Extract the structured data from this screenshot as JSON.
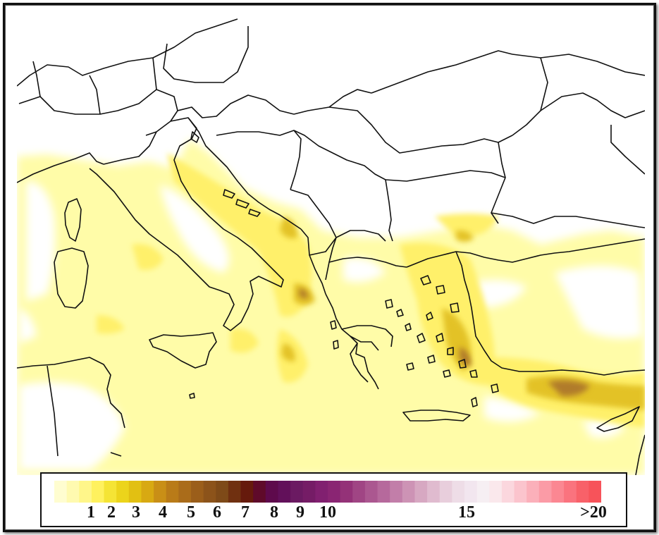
{
  "legend": {
    "colors": [
      "#fffdd0",
      "#fffab0",
      "#fff68a",
      "#fff15e",
      "#f5e435",
      "#ecd41b",
      "#e2c012",
      "#d8a912",
      "#c98f16",
      "#b97b18",
      "#aa6c1a",
      "#9b5e1a",
      "#8c531a",
      "#7e4a18",
      "#703010",
      "#661a0c",
      "#5f0a2a",
      "#5e0a4c",
      "#62105a",
      "#6b1a62",
      "#751c66",
      "#812070",
      "#8a2573",
      "#943278",
      "#a04584",
      "#ab5790",
      "#b6699c",
      "#c27ea9",
      "#cd93b5",
      "#d7a8c2",
      "#e0bbcf",
      "#e8cedc",
      "#eedde7",
      "#f2e6ef",
      "#f6eff3",
      "#fae8ec",
      "#fbd7de",
      "#fbc4cd",
      "#fbb0ba",
      "#fb9ba6",
      "#fb8792",
      "#fa737e",
      "#f86169",
      "#f7535a"
    ],
    "tick_labels": [
      "1",
      "2",
      "3",
      "4",
      "5",
      "6",
      "7",
      "8",
      "9",
      "10",
      "15",
      ">20"
    ]
  }
}
